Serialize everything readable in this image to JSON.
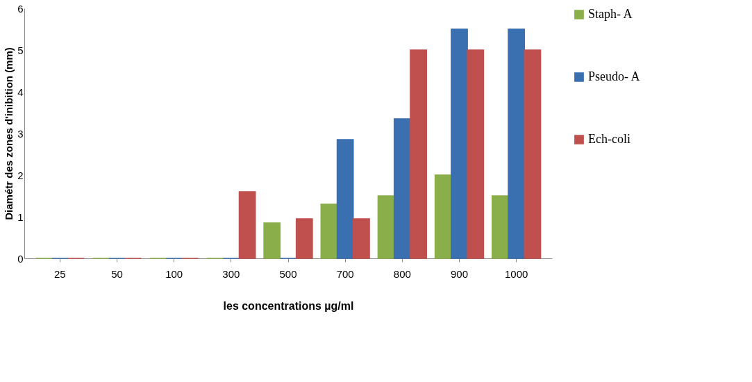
{
  "chart_data": {
    "type": "bar",
    "xlabel": "les concentrations µg/ml",
    "ylabel": "Diamétr des zones d'inibition (mm)",
    "categories": [
      "25",
      "50",
      "100",
      "300",
      "500",
      "700",
      "800",
      "900",
      "1000"
    ],
    "series": [
      {
        "name": "Staph- A",
        "color": "#8aaf4a",
        "values": [
          0,
          0,
          0,
          0,
          0.85,
          1.3,
          1.5,
          2,
          1.5
        ]
      },
      {
        "name": "Pseudo- A",
        "color": "#3a6fb0",
        "values": [
          0,
          0,
          0,
          0,
          0,
          2.85,
          3.35,
          5.5,
          5.5
        ]
      },
      {
        "name": "Ech-coli",
        "color": "#c0504d",
        "values": [
          0,
          0,
          0,
          1.6,
          0.95,
          0.95,
          5,
          5,
          5
        ]
      }
    ],
    "ylim": [
      0,
      6
    ],
    "yticks": [
      0,
      1,
      2,
      3,
      4,
      5,
      6
    ],
    "grid": false,
    "legend": "right"
  }
}
